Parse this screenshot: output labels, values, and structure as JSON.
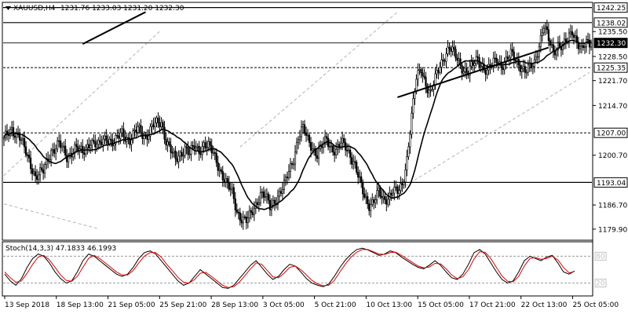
{
  "header": {
    "symbol": "XAUUSD,H4",
    "ohlc": "1231.76 1233.03 1231.20 1232.30",
    "arrow_icon": "triangle-down-icon"
  },
  "colors": {
    "background": "#ffffff",
    "candle": "#000000",
    "ma": "#000000",
    "grid_dash": "#999999",
    "channel_dash": "#b4b4b4",
    "stoch_main": "#000000",
    "stoch_signal": "#e00000",
    "level_box": "#ffffff"
  },
  "chart_data": [
    {
      "type": "candlestick",
      "symbol": "XAUUSD",
      "timeframe": "H4",
      "ylim": [
        1177.0,
        1243.5
      ],
      "y_ticks": [
        1179.9,
        1186.7,
        1200.7,
        1214.7,
        1221.7,
        1228.5,
        1235.5
      ],
      "levels": [
        {
          "value": 1242.25,
          "label": "1242.25",
          "style": "solid"
        },
        {
          "value": 1238.02,
          "label": "1238.02",
          "style": "solid"
        },
        {
          "value": 1232.3,
          "label": "1232.30",
          "style": "solid",
          "role": "current-price"
        },
        {
          "value": 1225.35,
          "label": "1225.35",
          "style": "dashed"
        },
        {
          "value": 1207.0,
          "label": "1207.00",
          "style": "dashed"
        },
        {
          "value": 1193.04,
          "label": "1193.04",
          "style": "solid"
        }
      ],
      "x_labels": [
        "13 Sep 2018",
        "18 Sep 13:00",
        "21 Sep 05:00",
        "25 Sep 21:00",
        "28 Sep 13:00",
        "3 Oct 05:00",
        "5 Oct 21:00",
        "10 Oct 13:00",
        "15 Oct 05:00",
        "17 Oct 21:00",
        "22 Oct 13:00",
        "25 Oct 05:00"
      ],
      "price_path": [
        [
          0,
          1205
        ],
        [
          5,
          1208
        ],
        [
          10,
          1206
        ],
        [
          15,
          1200
        ],
        [
          20,
          1195
        ],
        [
          25,
          1196
        ],
        [
          30,
          1202
        ],
        [
          35,
          1204
        ],
        [
          40,
          1200
        ],
        [
          45,
          1203
        ],
        [
          50,
          1201
        ],
        [
          55,
          1205
        ],
        [
          60,
          1203
        ],
        [
          65,
          1206
        ],
        [
          70,
          1204
        ],
        [
          75,
          1207
        ],
        [
          80,
          1205
        ],
        [
          85,
          1208
        ],
        [
          90,
          1206
        ],
        [
          95,
          1209
        ],
        [
          100,
          1210
        ],
        [
          103,
          1205
        ],
        [
          106,
          1202
        ],
        [
          109,
          1199
        ],
        [
          112,
          1201
        ],
        [
          115,
          1203
        ],
        [
          118,
          1201
        ],
        [
          121,
          1203
        ],
        [
          124,
          1202
        ],
        [
          127,
          1204
        ],
        [
          130,
          1203
        ],
        [
          133,
          1201
        ],
        [
          136,
          1198
        ],
        [
          139,
          1195
        ],
        [
          142,
          1192
        ],
        [
          145,
          1190
        ],
        [
          148,
          1185
        ],
        [
          151,
          1183
        ],
        [
          154,
          1182
        ],
        [
          157,
          1184
        ],
        [
          160,
          1187
        ],
        [
          163,
          1190
        ],
        [
          166,
          1189
        ],
        [
          169,
          1186
        ],
        [
          172,
          1188
        ],
        [
          175,
          1190
        ],
        [
          178,
          1192
        ],
        [
          181,
          1196
        ],
        [
          184,
          1200
        ],
        [
          187,
          1206
        ],
        [
          190,
          1208
        ],
        [
          193,
          1205
        ],
        [
          196,
          1203
        ],
        [
          199,
          1201
        ],
        [
          202,
          1203
        ],
        [
          205,
          1205
        ],
        [
          208,
          1203
        ],
        [
          211,
          1202
        ],
        [
          214,
          1204
        ],
        [
          217,
          1203
        ],
        [
          220,
          1201
        ],
        [
          223,
          1198
        ],
        [
          226,
          1193
        ],
        [
          229,
          1189
        ],
        [
          232,
          1187
        ],
        [
          235,
          1188
        ],
        [
          238,
          1190
        ],
        [
          241,
          1188
        ],
        [
          244,
          1189
        ],
        [
          247,
          1191
        ],
        [
          250,
          1190
        ],
        [
          253,
          1192
        ],
        [
          256,
          1200
        ],
        [
          259,
          1212
        ],
        [
          262,
          1222
        ],
        [
          265,
          1225
        ],
        [
          268,
          1221
        ],
        [
          271,
          1218
        ],
        [
          274,
          1222
        ],
        [
          277,
          1226
        ],
        [
          280,
          1229
        ],
        [
          283,
          1231
        ],
        [
          286,
          1229
        ],
        [
          289,
          1227
        ],
        [
          292,
          1225
        ],
        [
          295,
          1224
        ],
        [
          298,
          1226
        ],
        [
          301,
          1228
        ],
        [
          304,
          1226
        ],
        [
          307,
          1224
        ],
        [
          310,
          1226
        ],
        [
          313,
          1228
        ],
        [
          316,
          1226
        ],
        [
          319,
          1227
        ],
        [
          322,
          1229
        ],
        [
          325,
          1228
        ],
        [
          328,
          1226
        ],
        [
          331,
          1224
        ],
        [
          334,
          1225
        ],
        [
          337,
          1227
        ],
        [
          340,
          1232
        ],
        [
          343,
          1237
        ],
        [
          346,
          1233
        ],
        [
          349,
          1230
        ],
        [
          352,
          1232
        ],
        [
          355,
          1231
        ],
        [
          358,
          1233
        ],
        [
          361,
          1236
        ],
        [
          364,
          1233
        ],
        [
          367,
          1230
        ],
        [
          370,
          1232
        ],
        [
          373,
          1232.3
        ]
      ],
      "ma_length": 20,
      "trendlines": [
        {
          "from": [
            1232,
            50
          ],
          "to": [
            1241,
            90
          ],
          "style": "solid"
        },
        {
          "from": [
            1217,
            250
          ],
          "to": [
            1231,
            346
          ],
          "style": "solid"
        },
        {
          "from": [
            1195,
            0
          ],
          "to": [
            1236,
            100
          ],
          "style": "dashed"
        },
        {
          "from": [
            1203,
            150
          ],
          "to": [
            1241,
            250
          ],
          "style": "dashed"
        },
        {
          "from": [
            1187,
            0
          ],
          "to": [
            1180,
            60
          ],
          "style": "dashed"
        },
        {
          "from": [
            1188,
            240
          ],
          "to": [
            1224,
            372
          ],
          "style": "dashed"
        }
      ]
    },
    {
      "type": "line",
      "indicator": "Stochastic",
      "label": "Stoch(14,3,3) 47.1833 46.1993",
      "values_shown": [
        47.1833,
        46.1993
      ],
      "ylim": [
        0,
        100
      ],
      "y_ticks": [
        20,
        80
      ],
      "series": [
        {
          "role": "main",
          "values": [
            40,
            25,
            15,
            30,
            55,
            75,
            85,
            80,
            65,
            45,
            30,
            20,
            25,
            45,
            70,
            85,
            80,
            70,
            60,
            50,
            40,
            35,
            40,
            55,
            75,
            88,
            92,
            85,
            70,
            55,
            40,
            25,
            15,
            20,
            35,
            50,
            40,
            30,
            20,
            10,
            8,
            15,
            30,
            45,
            60,
            70,
            55,
            40,
            28,
            35,
            50,
            62,
            58,
            45,
            30,
            20,
            15,
            12,
            18,
            35,
            55,
            72,
            85,
            95,
            98,
            94,
            88,
            82,
            85,
            92,
            88,
            78,
            70,
            62,
            55,
            52,
            60,
            70,
            60,
            45,
            32,
            28,
            40,
            62,
            88,
            95,
            85,
            65,
            45,
            28,
            20,
            25,
            45,
            70,
            80,
            75,
            70,
            78,
            82,
            65,
            45,
            40,
            47
          ]
        },
        {
          "role": "signal",
          "values": [
            45,
            32,
            22,
            25,
            42,
            62,
            78,
            82,
            72,
            55,
            38,
            26,
            24,
            35,
            55,
            75,
            82,
            75,
            65,
            55,
            45,
            38,
            38,
            48,
            65,
            80,
            88,
            88,
            78,
            62,
            48,
            33,
            22,
            20,
            28,
            42,
            44,
            35,
            25,
            15,
            10,
            12,
            22,
            37,
            52,
            65,
            62,
            48,
            34,
            32,
            42,
            55,
            58,
            50,
            38,
            26,
            18,
            14,
            15,
            26,
            45,
            63,
            78,
            89,
            95,
            95,
            90,
            85,
            84,
            88,
            89,
            82,
            74,
            66,
            58,
            54,
            56,
            64,
            63,
            52,
            38,
            30,
            34,
            50,
            74,
            90,
            89,
            75,
            55,
            36,
            24,
            23,
            35,
            58,
            75,
            77,
            73,
            75,
            80,
            72,
            55,
            43,
            46
          ]
        }
      ]
    }
  ]
}
